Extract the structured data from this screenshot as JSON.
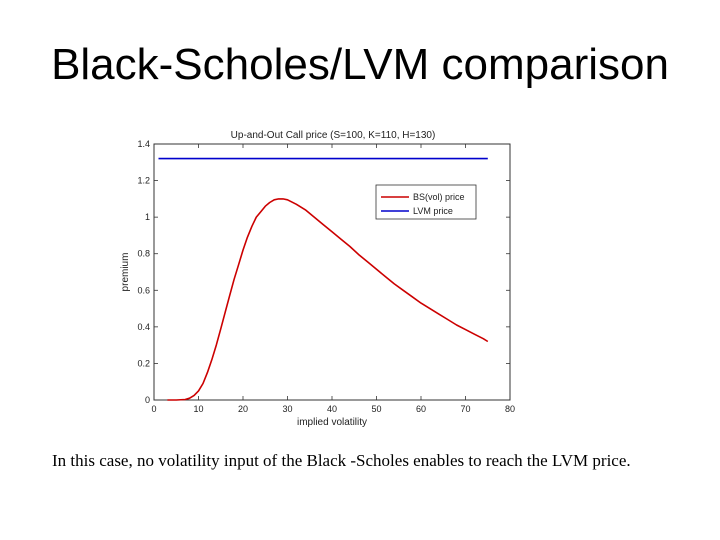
{
  "slide": {
    "title": "Black-Scholes/LVM comparison",
    "caption": "In this case, no volatility input of the Black -Scholes enables to reach the LVM price."
  },
  "chart_data": {
    "type": "line",
    "title": "Up-and-Out Call price (S=100, K=110, H=130)",
    "xlabel": "implied volatility",
    "ylabel": "premium",
    "xlim": [
      0,
      80
    ],
    "ylim": [
      0,
      1.4
    ],
    "xticks": [
      0,
      10,
      20,
      30,
      40,
      50,
      60,
      70,
      80
    ],
    "yticks": [
      0,
      0.2,
      0.4,
      0.6,
      0.8,
      1,
      1.2,
      1.4
    ],
    "xtick_labels": [
      "0",
      "10",
      "20",
      "30",
      "40",
      "50",
      "60",
      "70",
      "80"
    ],
    "ytick_labels": [
      "0",
      "0.2",
      "0.4",
      "0.6",
      "0.8",
      "1",
      "1.2",
      "1.4"
    ],
    "grid": false,
    "legend_position": "top-right",
    "series": [
      {
        "name": "BS(vol) price",
        "color": "#cc0000",
        "x": [
          3,
          5,
          7,
          8,
          9,
          10,
          11,
          12,
          13,
          14,
          15,
          16,
          17,
          18,
          19,
          20,
          21,
          22,
          23,
          24,
          25,
          26,
          27,
          28,
          29,
          30,
          32,
          34,
          36,
          38,
          40,
          42,
          44,
          46,
          48,
          50,
          52,
          54,
          56,
          58,
          60,
          62,
          64,
          66,
          68,
          70,
          72,
          74,
          75
        ],
        "y": [
          0,
          0,
          0.003,
          0.01,
          0.025,
          0.05,
          0.09,
          0.15,
          0.22,
          0.3,
          0.39,
          0.48,
          0.57,
          0.66,
          0.74,
          0.82,
          0.89,
          0.95,
          1.0,
          1.03,
          1.06,
          1.08,
          1.095,
          1.1,
          1.1,
          1.095,
          1.07,
          1.04,
          1.0,
          0.96,
          0.92,
          0.88,
          0.84,
          0.795,
          0.755,
          0.715,
          0.675,
          0.635,
          0.6,
          0.565,
          0.53,
          0.5,
          0.47,
          0.44,
          0.41,
          0.385,
          0.36,
          0.335,
          0.32
        ]
      },
      {
        "name": "LVM price",
        "color": "#0000cc",
        "x": [
          1,
          75
        ],
        "y": [
          1.32,
          1.32
        ]
      }
    ]
  }
}
